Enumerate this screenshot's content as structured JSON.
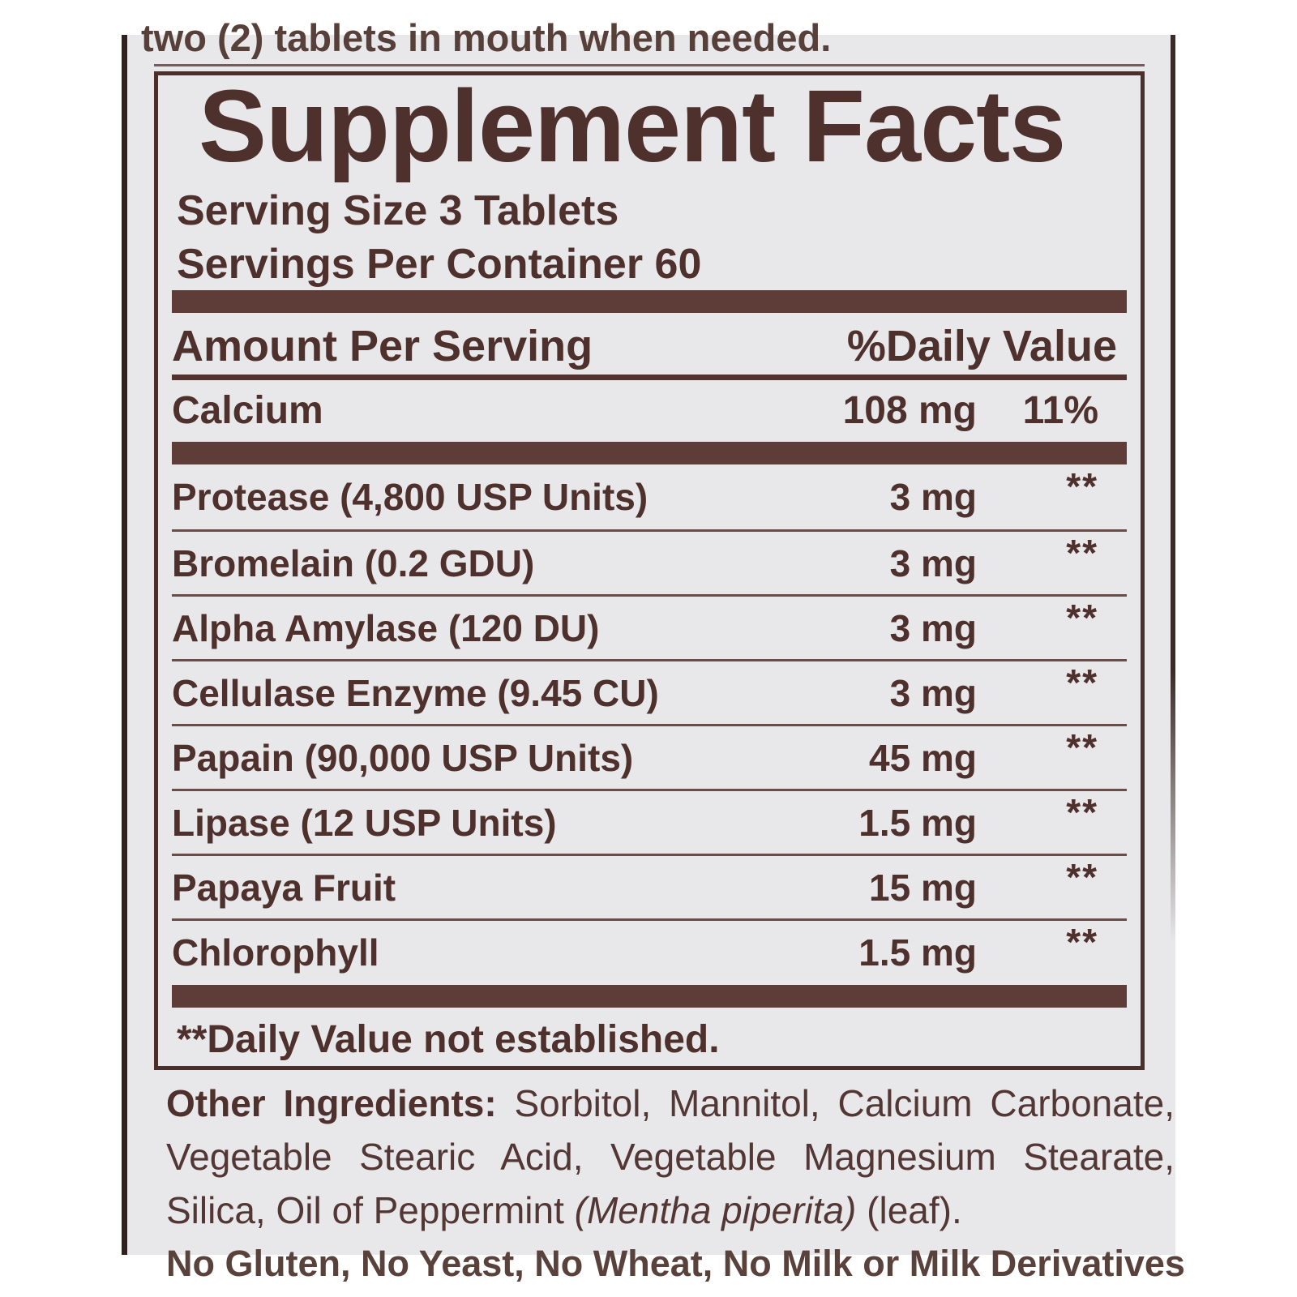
{
  "colors": {
    "page_bg": "#ffffff",
    "label_bg": "#e8e7ea",
    "text": "#4e302c",
    "heavy_bar": "#5e3c38",
    "thin_rule": "#6d4b46",
    "box_border": "#4a2f2b"
  },
  "top_partial_text": "two (2) tablets in mouth when needed.",
  "panel": {
    "title": "Supplement Facts",
    "serving_size": "Serving Size 3 Tablets",
    "servings_per_container": "Servings Per Container 60",
    "amount_header": "Amount Per Serving",
    "daily_value_header": "%Daily Value",
    "calcium": {
      "name": "Calcium",
      "amount": "108 mg",
      "dv": "11%"
    },
    "rows": [
      {
        "name": "Protease (4,800 USP Units)",
        "amount": "3 mg",
        "dv": "**"
      },
      {
        "name": "Bromelain (0.2 GDU)",
        "amount": "3 mg",
        "dv": "**"
      },
      {
        "name": "Alpha Amylase (120 DU)",
        "amount": "3 mg",
        "dv": "**"
      },
      {
        "name": "Cellulase Enzyme (9.45 CU)",
        "amount": "3 mg",
        "dv": "**"
      },
      {
        "name": "Papain (90,000 USP Units)",
        "amount": "45 mg",
        "dv": "**"
      },
      {
        "name": "Lipase (12 USP Units)",
        "amount": "1.5 mg",
        "dv": "**"
      },
      {
        "name": "Papaya Fruit",
        "amount": "15 mg",
        "dv": "**"
      },
      {
        "name": "Chlorophyll",
        "amount": "1.5 mg",
        "dv": "**"
      }
    ],
    "footnote": "**Daily Value not established."
  },
  "other_ingredients": {
    "label": "Other Ingredients:",
    "text_before_latin": " Sorbitol, Mannitol, Calcium Carbonate, Vegetable Stearic Acid, Vegetable Magnesium Stearate, Silica, Oil of Peppermint ",
    "latin": "(Mentha piperita)",
    "text_after_latin": " (leaf)."
  },
  "bottom_partial_text": "No Gluten, No Yeast, No Wheat, No Milk or Milk Derivatives"
}
